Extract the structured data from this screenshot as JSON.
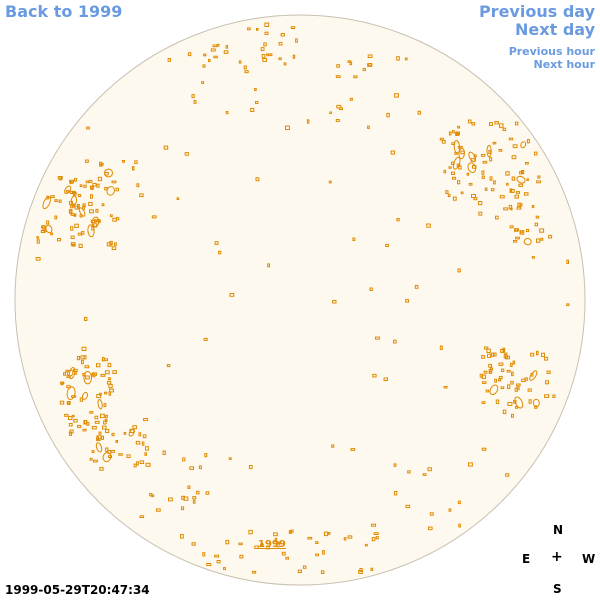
{
  "nav": {
    "back": "Back to 1999",
    "previous_day": "Previous day",
    "next_day": "Next day",
    "previous_hour": "Previous hour",
    "next_hour": "Next hour"
  },
  "disc": {
    "year_link": "1999",
    "fill_color": "#fef9ef",
    "border_color": "#c8c0b0",
    "contour_color": "#e08a00"
  },
  "timestamp": "1999-05-29T20:47:34",
  "compass": {
    "n": "N",
    "e": "E",
    "center": "+",
    "w": "W",
    "s": "S"
  }
}
